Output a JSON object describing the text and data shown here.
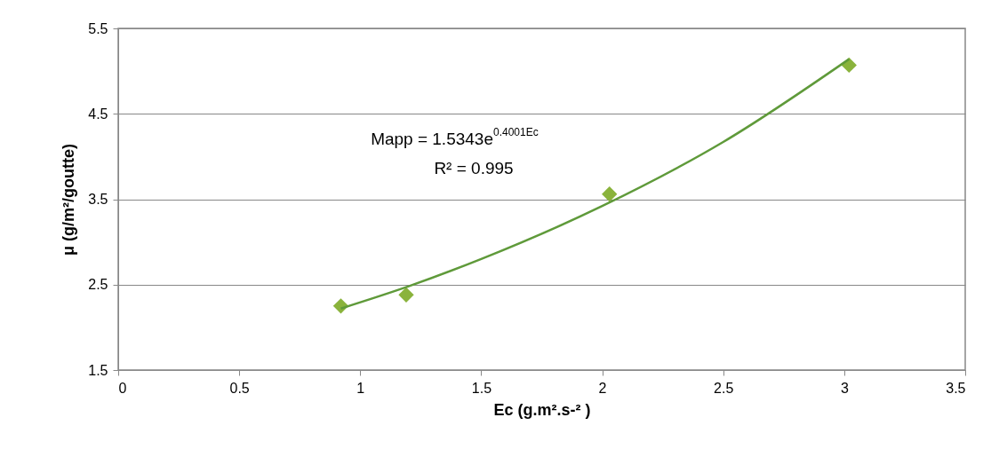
{
  "chart_data": {
    "type": "scatter",
    "xlabel": "Ec  (g.m².s-² )",
    "ylabel": "μ (g/m²/goutte)",
    "x": [
      0.92,
      1.19,
      2.03,
      3.02
    ],
    "values": [
      2.25,
      2.38,
      3.56,
      5.07
    ],
    "color": "#8ab33c",
    "marker": "diamond",
    "series": [
      {
        "type": "line",
        "color": "#5f9a3a",
        "marker": "none",
        "x": [
          0.92,
          1.2,
          1.5,
          2,
          2.5,
          3.02
        ],
        "values": [
          2.22,
          2.48,
          2.8,
          3.42,
          4.17,
          5.14
        ]
      }
    ],
    "xlim": [
      0,
      3.5
    ],
    "xticks": [
      0,
      0.5,
      1,
      1.5,
      2,
      2.5,
      3,
      3.5
    ],
    "ylim": [
      1.5,
      5.5
    ],
    "yticks": [
      1.5,
      2.5,
      3.5,
      4.5,
      5.5
    ],
    "grid": "y",
    "annotations": [
      "Mapp = 1.5343e$^{0.4001Ec}$",
      "R² = 0.995"
    ]
  }
}
